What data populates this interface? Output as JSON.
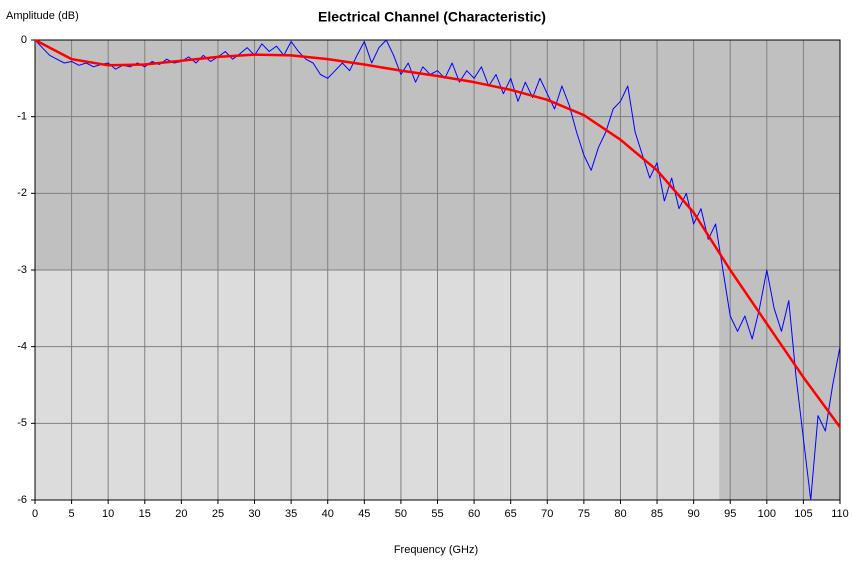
{
  "chart_data": {
    "type": "line",
    "title": "Electrical Channel (Characteristic)",
    "y_label": "Amplitude (dB)",
    "x_label": "Frequency (GHz)",
    "xlim": [
      0,
      110
    ],
    "ylim": [
      -6,
      0
    ],
    "xticks": [
      0,
      5,
      10,
      15,
      20,
      25,
      30,
      35,
      40,
      45,
      50,
      55,
      60,
      65,
      70,
      75,
      80,
      85,
      90,
      95,
      100,
      105,
      110
    ],
    "yticks": [
      0,
      -1,
      -2,
      -3,
      -4,
      -5,
      -6
    ],
    "grid": true,
    "highlight": {
      "xlim": [
        0,
        93.5
      ],
      "ylim": [
        -6,
        -3
      ],
      "color": "#dcdcdc"
    },
    "background": "#c0c0c0",
    "series": [
      {
        "color": "#0000ff",
        "x": [
          0,
          1,
          2,
          3,
          4,
          5,
          6,
          7,
          8,
          9,
          10,
          11,
          12,
          13,
          14,
          15,
          16,
          17,
          18,
          19,
          20,
          21,
          22,
          23,
          24,
          25,
          26,
          27,
          28,
          29,
          30,
          31,
          32,
          33,
          34,
          35,
          36,
          37,
          38,
          39,
          40,
          41,
          42,
          43,
          44,
          45,
          46,
          47,
          48,
          49,
          50,
          51,
          52,
          53,
          54,
          55,
          56,
          57,
          58,
          59,
          60,
          61,
          62,
          63,
          64,
          65,
          66,
          67,
          68,
          69,
          70,
          71,
          72,
          73,
          74,
          75,
          76,
          77,
          78,
          79,
          80,
          81,
          82,
          83,
          84,
          85,
          86,
          87,
          88,
          89,
          90,
          91,
          92,
          93,
          94,
          95,
          96,
          97,
          98,
          99,
          100,
          101,
          102,
          103,
          104,
          105,
          106,
          107,
          108,
          109,
          110
        ],
        "values": [
          0,
          -0.1,
          -0.2,
          -0.25,
          -0.3,
          -0.28,
          -0.33,
          -0.3,
          -0.35,
          -0.32,
          -0.3,
          -0.38,
          -0.33,
          -0.35,
          -0.3,
          -0.35,
          -0.28,
          -0.32,
          -0.25,
          -0.3,
          -0.28,
          -0.22,
          -0.3,
          -0.2,
          -0.28,
          -0.22,
          -0.15,
          -0.25,
          -0.18,
          -0.1,
          -0.2,
          -0.05,
          -0.15,
          -0.08,
          -0.2,
          -0.02,
          -0.15,
          -0.25,
          -0.3,
          -0.45,
          -0.5,
          -0.4,
          -0.3,
          -0.4,
          -0.2,
          -0.02,
          -0.3,
          -0.1,
          0,
          -0.2,
          -0.45,
          -0.3,
          -0.55,
          -0.35,
          -0.45,
          -0.4,
          -0.5,
          -0.3,
          -0.55,
          -0.4,
          -0.5,
          -0.35,
          -0.6,
          -0.45,
          -0.7,
          -0.5,
          -0.8,
          -0.55,
          -0.75,
          -0.5,
          -0.7,
          -0.9,
          -0.6,
          -0.85,
          -1.2,
          -1.5,
          -1.7,
          -1.4,
          -1.2,
          -0.9,
          -0.8,
          -0.6,
          -1.2,
          -1.5,
          -1.8,
          -1.6,
          -2.1,
          -1.8,
          -2.2,
          -2.0,
          -2.4,
          -2.2,
          -2.6,
          -2.4,
          -3.0,
          -3.6,
          -3.8,
          -3.6,
          -3.9,
          -3.5,
          -3.0,
          -3.5,
          -3.8,
          -3.4,
          -4.4,
          -5.2,
          -6.0,
          -4.9,
          -5.1,
          -4.5,
          -4.0
        ]
      },
      {
        "color": "#ff0000",
        "x": [
          0,
          5,
          10,
          15,
          20,
          25,
          30,
          35,
          40,
          45,
          50,
          55,
          60,
          65,
          70,
          75,
          80,
          85,
          90,
          95,
          100,
          105,
          110
        ],
        "values": [
          0,
          -0.25,
          -0.33,
          -0.32,
          -0.27,
          -0.22,
          -0.19,
          -0.2,
          -0.25,
          -0.32,
          -0.4,
          -0.47,
          -0.55,
          -0.65,
          -0.78,
          -0.98,
          -1.3,
          -1.7,
          -2.25,
          -3.0,
          -3.7,
          -4.4,
          -5.05
        ]
      }
    ]
  }
}
